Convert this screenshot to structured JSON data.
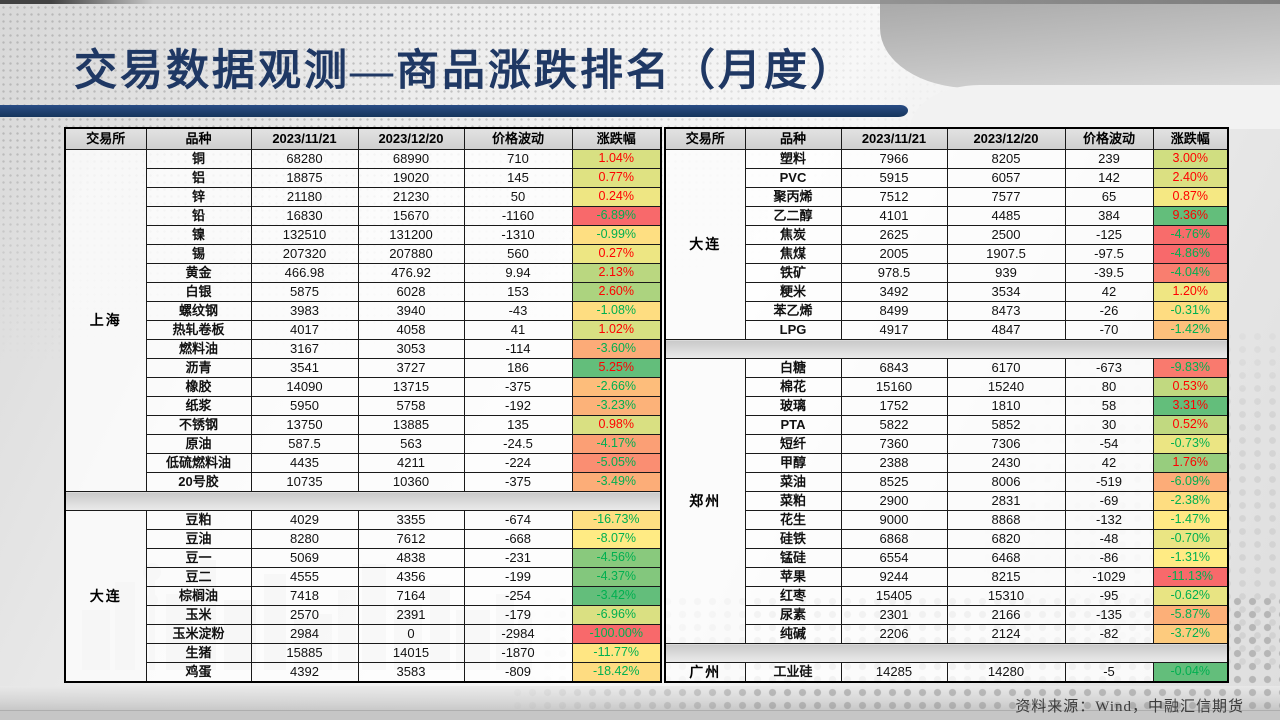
{
  "title": "交易数据观测—商品涨跌排名（月度）",
  "source_note": "资料来源：Wind，中融汇信期货",
  "columns": [
    "交易所",
    "品种",
    "2023/11/21",
    "2023/12/20",
    "价格波动",
    "涨跌幅"
  ],
  "colors": {
    "scale_min": "#F8696B",
    "scale_mid": "#FFEB84",
    "scale_max": "#63BE7B",
    "up_text": "#FF0000",
    "down_text": "#00B050",
    "title": "#1F3864",
    "title_bar": "#17375E"
  },
  "tables": [
    {
      "id": "left",
      "sections": [
        {
          "exchange": "上海",
          "rows": [
            {
              "name": "铜",
              "p1": "68280",
              "p2": "68990",
              "delta": "710",
              "pct": "1.04%",
              "v": 1.04
            },
            {
              "name": "铝",
              "p1": "18875",
              "p2": "19020",
              "delta": "145",
              "pct": "0.77%",
              "v": 0.77
            },
            {
              "name": "锌",
              "p1": "21180",
              "p2": "21230",
              "delta": "50",
              "pct": "0.24%",
              "v": 0.24
            },
            {
              "name": "铅",
              "p1": "16830",
              "p2": "15670",
              "delta": "-1160",
              "pct": "-6.89%",
              "v": -6.89
            },
            {
              "name": "镍",
              "p1": "132510",
              "p2": "131200",
              "delta": "-1310",
              "pct": "-0.99%",
              "v": -0.99
            },
            {
              "name": "锡",
              "p1": "207320",
              "p2": "207880",
              "delta": "560",
              "pct": "0.27%",
              "v": 0.27
            },
            {
              "name": "黄金",
              "p1": "466.98",
              "p2": "476.92",
              "delta": "9.94",
              "pct": "2.13%",
              "v": 2.13
            },
            {
              "name": "白银",
              "p1": "5875",
              "p2": "6028",
              "delta": "153",
              "pct": "2.60%",
              "v": 2.6
            },
            {
              "name": "螺纹钢",
              "p1": "3983",
              "p2": "3940",
              "delta": "-43",
              "pct": "-1.08%",
              "v": -1.08
            },
            {
              "name": "热轧卷板",
              "p1": "4017",
              "p2": "4058",
              "delta": "41",
              "pct": "1.02%",
              "v": 1.02
            },
            {
              "name": "燃料油",
              "p1": "3167",
              "p2": "3053",
              "delta": "-114",
              "pct": "-3.60%",
              "v": -3.6
            },
            {
              "name": "沥青",
              "p1": "3541",
              "p2": "3727",
              "delta": "186",
              "pct": "5.25%",
              "v": 5.25
            },
            {
              "name": "橡胶",
              "p1": "14090",
              "p2": "13715",
              "delta": "-375",
              "pct": "-2.66%",
              "v": -2.66
            },
            {
              "name": "纸浆",
              "p1": "5950",
              "p2": "5758",
              "delta": "-192",
              "pct": "-3.23%",
              "v": -3.23
            },
            {
              "name": "不锈钢",
              "p1": "13750",
              "p2": "13885",
              "delta": "135",
              "pct": "0.98%",
              "v": 0.98
            },
            {
              "name": "原油",
              "p1": "587.5",
              "p2": "563",
              "delta": "-24.5",
              "pct": "-4.17%",
              "v": -4.17
            },
            {
              "name": "低硫燃料油",
              "p1": "4435",
              "p2": "4211",
              "delta": "-224",
              "pct": "-5.05%",
              "v": -5.05
            },
            {
              "name": "20号胶",
              "p1": "10735",
              "p2": "10360",
              "delta": "-375",
              "pct": "-3.49%",
              "v": -3.49
            }
          ]
        },
        {
          "exchange": "大连",
          "rows": [
            {
              "name": "豆粕",
              "p1": "4029",
              "p2": "3355",
              "delta": "-674",
              "pct": "-16.73%",
              "v": -16.73
            },
            {
              "name": "豆油",
              "p1": "8280",
              "p2": "7612",
              "delta": "-668",
              "pct": "-8.07%",
              "v": -8.07
            },
            {
              "name": "豆一",
              "p1": "5069",
              "p2": "4838",
              "delta": "-231",
              "pct": "-4.56%",
              "v": -4.56
            },
            {
              "name": "豆二",
              "p1": "4555",
              "p2": "4356",
              "delta": "-199",
              "pct": "-4.37%",
              "v": -4.37
            },
            {
              "name": "棕榈油",
              "p1": "7418",
              "p2": "7164",
              "delta": "-254",
              "pct": "-3.42%",
              "v": -3.42
            },
            {
              "name": "玉米",
              "p1": "2570",
              "p2": "2391",
              "delta": "-179",
              "pct": "-6.96%",
              "v": -6.96
            },
            {
              "name": "玉米淀粉",
              "p1": "2984",
              "p2": "0",
              "delta": "-2984",
              "pct": "-100.00%",
              "v": -100.0
            },
            {
              "name": "生猪",
              "p1": "15885",
              "p2": "14015",
              "delta": "-1870",
              "pct": "-11.77%",
              "v": -11.77
            },
            {
              "name": "鸡蛋",
              "p1": "4392",
              "p2": "3583",
              "delta": "-809",
              "pct": "-18.42%",
              "v": -18.42
            }
          ]
        }
      ]
    },
    {
      "id": "right",
      "sections": [
        {
          "exchange": "大连",
          "rows": [
            {
              "name": "塑料",
              "p1": "7966",
              "p2": "8205",
              "delta": "239",
              "pct": "3.00%",
              "v": 3.0
            },
            {
              "name": "PVC",
              "p1": "5915",
              "p2": "6057",
              "delta": "142",
              "pct": "2.40%",
              "v": 2.4
            },
            {
              "name": "聚丙烯",
              "p1": "7512",
              "p2": "7577",
              "delta": "65",
              "pct": "0.87%",
              "v": 0.87
            },
            {
              "name": "乙二醇",
              "p1": "4101",
              "p2": "4485",
              "delta": "384",
              "pct": "9.36%",
              "v": 9.36
            },
            {
              "name": "焦炭",
              "p1": "2625",
              "p2": "2500",
              "delta": "-125",
              "pct": "-4.76%",
              "v": -4.76
            },
            {
              "name": "焦煤",
              "p1": "2005",
              "p2": "1907.5",
              "delta": "-97.5",
              "pct": "-4.86%",
              "v": -4.86
            },
            {
              "name": "铁矿",
              "p1": "978.5",
              "p2": "939",
              "delta": "-39.5",
              "pct": "-4.04%",
              "v": -4.04
            },
            {
              "name": "粳米",
              "p1": "3492",
              "p2": "3534",
              "delta": "42",
              "pct": "1.20%",
              "v": 1.2
            },
            {
              "name": "苯乙烯",
              "p1": "8499",
              "p2": "8473",
              "delta": "-26",
              "pct": "-0.31%",
              "v": -0.31
            },
            {
              "name": "LPG",
              "p1": "4917",
              "p2": "4847",
              "delta": "-70",
              "pct": "-1.42%",
              "v": -1.42
            }
          ]
        },
        {
          "exchange": "郑州",
          "rows": [
            {
              "name": "白糖",
              "p1": "6843",
              "p2": "6170",
              "delta": "-673",
              "pct": "-9.83%",
              "v": -9.83
            },
            {
              "name": "棉花",
              "p1": "15160",
              "p2": "15240",
              "delta": "80",
              "pct": "0.53%",
              "v": 0.53
            },
            {
              "name": "玻璃",
              "p1": "1752",
              "p2": "1810",
              "delta": "58",
              "pct": "3.31%",
              "v": 3.31
            },
            {
              "name": "PTA",
              "p1": "5822",
              "p2": "5852",
              "delta": "30",
              "pct": "0.52%",
              "v": 0.52
            },
            {
              "name": "短纤",
              "p1": "7360",
              "p2": "7306",
              "delta": "-54",
              "pct": "-0.73%",
              "v": -0.73
            },
            {
              "name": "甲醇",
              "p1": "2388",
              "p2": "2430",
              "delta": "42",
              "pct": "1.76%",
              "v": 1.76
            },
            {
              "name": "菜油",
              "p1": "8525",
              "p2": "8006",
              "delta": "-519",
              "pct": "-6.09%",
              "v": -6.09
            },
            {
              "name": "菜粕",
              "p1": "2900",
              "p2": "2831",
              "delta": "-69",
              "pct": "-2.38%",
              "v": -2.38
            },
            {
              "name": "花生",
              "p1": "9000",
              "p2": "8868",
              "delta": "-132",
              "pct": "-1.47%",
              "v": -1.47
            },
            {
              "name": "硅铁",
              "p1": "6868",
              "p2": "6820",
              "delta": "-48",
              "pct": "-0.70%",
              "v": -0.7
            },
            {
              "name": "锰硅",
              "p1": "6554",
              "p2": "6468",
              "delta": "-86",
              "pct": "-1.31%",
              "v": -1.31
            },
            {
              "name": "苹果",
              "p1": "9244",
              "p2": "8215",
              "delta": "-1029",
              "pct": "-11.13%",
              "v": -11.13
            },
            {
              "name": "红枣",
              "p1": "15405",
              "p2": "15310",
              "delta": "-95",
              "pct": "-0.62%",
              "v": -0.62
            },
            {
              "name": "尿素",
              "p1": "2301",
              "p2": "2166",
              "delta": "-135",
              "pct": "-5.87%",
              "v": -5.87
            },
            {
              "name": "纯碱",
              "p1": "2206",
              "p2": "2124",
              "delta": "-82",
              "pct": "-3.72%",
              "v": -3.72
            }
          ]
        },
        {
          "exchange": "广州",
          "rows": [
            {
              "name": "工业硅",
              "p1": "14285",
              "p2": "14280",
              "delta": "-5",
              "pct": "-0.04%",
              "v": -0.04
            }
          ]
        }
      ]
    }
  ]
}
